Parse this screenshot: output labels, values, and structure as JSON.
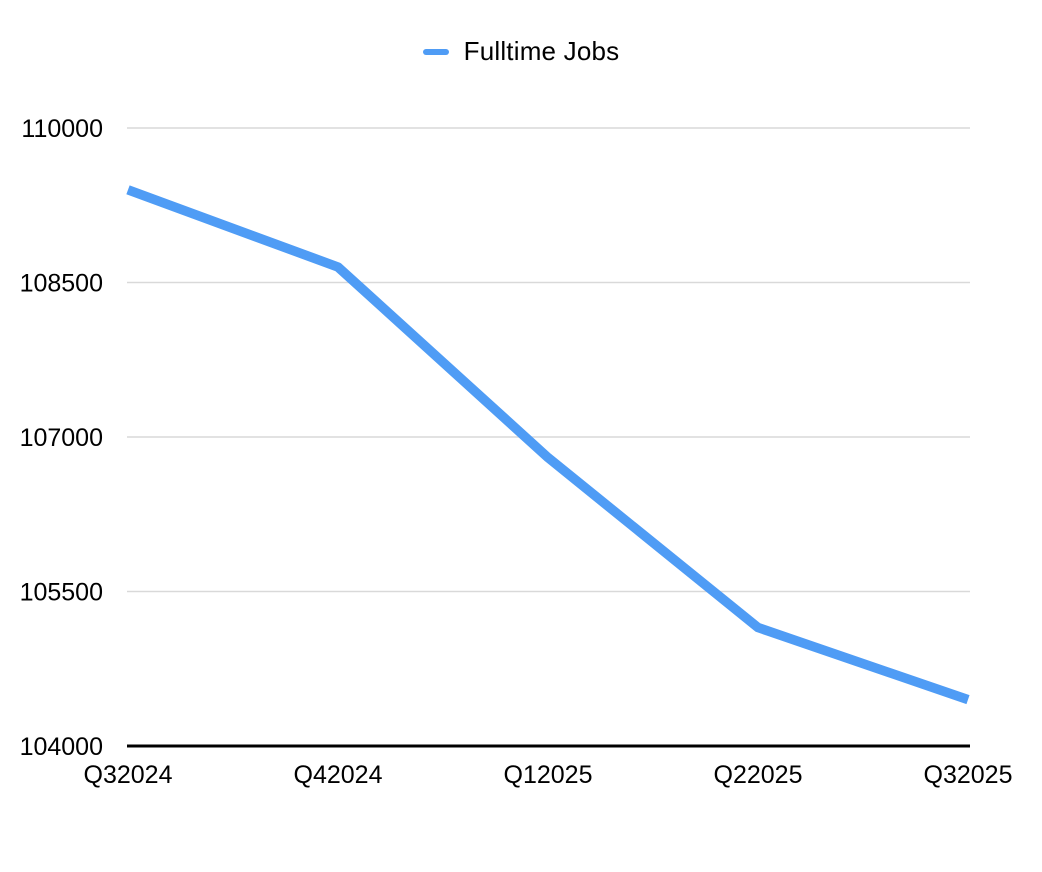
{
  "chart_data": {
    "type": "line",
    "title": "",
    "legend_position": "top",
    "categories": [
      "Q32024",
      "Q42024",
      "Q12025",
      "Q22025",
      "Q32025"
    ],
    "series": [
      {
        "name": "Fulltime Jobs",
        "color": "#4f9cf5",
        "values": [
          109400,
          108650,
          106800,
          105150,
          104450
        ]
      }
    ],
    "xlabel": "",
    "ylabel": "",
    "ylim": [
      104000,
      110000
    ],
    "y_ticks": [
      104000,
      105500,
      107000,
      108500,
      110000
    ],
    "grid": true,
    "colors": {
      "gridline": "#d9d9d9",
      "axis": "#000000",
      "tick_text": "#000000"
    }
  }
}
